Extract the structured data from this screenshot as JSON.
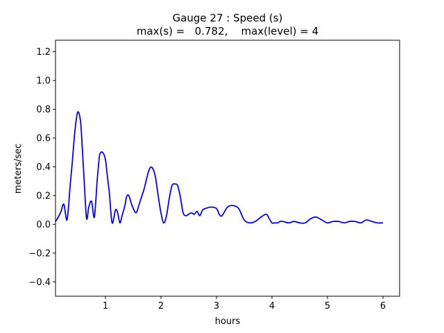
{
  "chart_data": {
    "type": "line",
    "title": "Gauge 27 : Speed (s)",
    "subtitle": "max(s) =   0.782,    max(level) = 4",
    "xlabel": "hours",
    "ylabel": "meters/sec",
    "xlim": [
      0.1,
      6.3
    ],
    "ylim": [
      -0.5,
      1.28
    ],
    "xticks": [
      1,
      2,
      3,
      4,
      5,
      6
    ],
    "yticks": [
      -0.4,
      -0.2,
      0.0,
      0.2,
      0.4,
      0.6,
      0.8,
      1.0,
      1.2
    ],
    "xtick_labels": [
      "1",
      "2",
      "3",
      "4",
      "5",
      "6"
    ],
    "ytick_labels": [
      "−0.4",
      "−0.2",
      "0.0",
      "0.2",
      "0.4",
      "0.6",
      "0.8",
      "1.0",
      "1.2"
    ],
    "grid": false,
    "color": "#0000ff",
    "series": [
      {
        "x": [
          0.1,
          0.15,
          0.2,
          0.25,
          0.3,
          0.33,
          0.36,
          0.4,
          0.45,
          0.5,
          0.55,
          0.58,
          0.62,
          0.66,
          0.7,
          0.75,
          0.8,
          0.85,
          0.88,
          0.9,
          0.95,
          1.0,
          1.03,
          1.07,
          1.12,
          1.18,
          1.22,
          1.26,
          1.3,
          1.35,
          1.38,
          1.42,
          1.48,
          1.55,
          1.6,
          1.65,
          1.7,
          1.75,
          1.8,
          1.85,
          1.9,
          1.95,
          2.0,
          2.05,
          2.1,
          2.15,
          2.2,
          2.25,
          2.3,
          2.35,
          2.4,
          2.45,
          2.5,
          2.55,
          2.6,
          2.65,
          2.7,
          2.75,
          2.8,
          2.9,
          3.0,
          3.05,
          3.1,
          3.2,
          3.3,
          3.4,
          3.5,
          3.6,
          3.7,
          3.8,
          3.9,
          3.95,
          4.0,
          4.05,
          4.1,
          4.15,
          4.2,
          4.3,
          4.4,
          4.5,
          4.6,
          4.7,
          4.8,
          4.9,
          5.0,
          5.1,
          5.2,
          5.3,
          5.4,
          5.5,
          5.6,
          5.7,
          5.8,
          5.9,
          6.0
        ],
        "y": [
          0.02,
          0.05,
          0.09,
          0.14,
          0.03,
          0.1,
          0.25,
          0.42,
          0.65,
          0.78,
          0.72,
          0.55,
          0.28,
          0.04,
          0.12,
          0.16,
          0.05,
          0.3,
          0.43,
          0.49,
          0.5,
          0.45,
          0.35,
          0.22,
          0.01,
          0.1,
          0.08,
          0.01,
          0.06,
          0.13,
          0.19,
          0.2,
          0.13,
          0.08,
          0.13,
          0.19,
          0.25,
          0.33,
          0.39,
          0.39,
          0.33,
          0.2,
          0.08,
          0.01,
          0.06,
          0.18,
          0.27,
          0.28,
          0.27,
          0.19,
          0.08,
          0.06,
          0.07,
          0.08,
          0.07,
          0.09,
          0.06,
          0.1,
          0.11,
          0.12,
          0.11,
          0.07,
          0.06,
          0.12,
          0.13,
          0.11,
          0.03,
          0.01,
          0.02,
          0.05,
          0.07,
          0.04,
          0.01,
          0.01,
          0.01,
          0.02,
          0.02,
          0.01,
          0.02,
          0.01,
          0.01,
          0.04,
          0.05,
          0.03,
          0.01,
          0.02,
          0.02,
          0.01,
          0.02,
          0.02,
          0.01,
          0.03,
          0.02,
          0.01,
          0.01
        ]
      }
    ]
  }
}
